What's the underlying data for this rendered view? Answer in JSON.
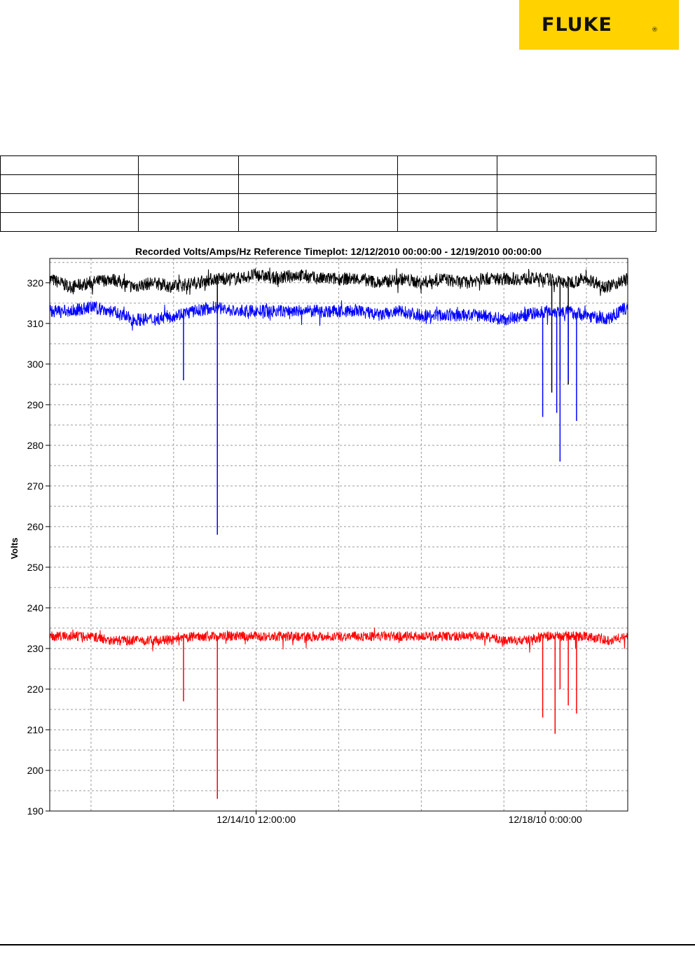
{
  "logo": {
    "text": "FLUKE",
    "registered": "®",
    "color": "#ffd200"
  },
  "table": {
    "rows": [
      [
        "",
        "",
        "",
        "",
        ""
      ],
      [
        "",
        "",
        "",
        "",
        ""
      ],
      [
        "",
        "",
        "",
        "",
        ""
      ],
      [
        "",
        "",
        "",
        "",
        ""
      ]
    ]
  },
  "chart_data": {
    "type": "line",
    "title": "Recorded Volts/Amps/Hz Reference Timeplot: 12/12/2010 00:00:00 - 12/19/2010 00:00:00",
    "xlabel": "",
    "ylabel": "Volts",
    "x_range": [
      "12/12/10 0:00:00",
      "12/19/10 0:00:00"
    ],
    "x_tick_labels": [
      "12/14/10 12:00:00",
      "12/18/10 0:00:00"
    ],
    "ylim": [
      190,
      326
    ],
    "y_ticks": [
      190,
      200,
      210,
      220,
      230,
      240,
      250,
      260,
      270,
      280,
      290,
      300,
      310,
      320
    ],
    "grid": true,
    "legend": "none",
    "series": [
      {
        "color": "#000000",
        "day_offsets": [
          0,
          0.25,
          0.5,
          0.75,
          1,
          1.25,
          1.5,
          1.75,
          2,
          2.25,
          2.5,
          2.75,
          3,
          3.25,
          3.5,
          3.75,
          4,
          4.25,
          4.5,
          4.75,
          5,
          5.25,
          5.5,
          5.75,
          6,
          6.25,
          6.5,
          6.75,
          7
        ],
        "values": [
          321,
          319,
          320,
          321,
          319,
          320,
          319,
          320,
          321,
          321,
          322,
          321,
          322,
          321,
          321,
          321,
          320,
          321,
          320,
          321,
          320,
          321,
          321,
          321,
          321,
          320,
          321,
          319,
          321
        ],
        "noise": 1.6,
        "dips": [
          {
            "x": 2.03,
            "y": 284
          },
          {
            "x": 6.08,
            "y": 293
          },
          {
            "x": 6.18,
            "y": 296
          },
          {
            "x": 6.28,
            "y": 295
          }
        ]
      },
      {
        "color": "#0000ff",
        "day_offsets": [
          0,
          0.25,
          0.5,
          0.75,
          1,
          1.25,
          1.5,
          1.75,
          2,
          2.25,
          2.5,
          2.75,
          3,
          3.25,
          3.5,
          3.75,
          4,
          4.25,
          4.5,
          4.75,
          5,
          5.25,
          5.5,
          5.75,
          6,
          6.25,
          6.5,
          6.75,
          7
        ],
        "values": [
          313,
          313,
          314,
          313,
          311,
          311,
          312,
          313,
          314,
          313,
          313,
          313,
          313,
          313,
          313,
          313,
          312,
          313,
          312,
          312,
          312,
          312,
          311,
          312,
          313,
          313,
          312,
          311,
          314
        ],
        "noise": 1.6,
        "dips": [
          {
            "x": 1.62,
            "y": 296
          },
          {
            "x": 2.03,
            "y": 258
          },
          {
            "x": 5.97,
            "y": 287
          },
          {
            "x": 6.14,
            "y": 288
          },
          {
            "x": 6.18,
            "y": 276
          },
          {
            "x": 6.28,
            "y": 296
          },
          {
            "x": 6.38,
            "y": 286
          }
        ]
      },
      {
        "color": "#ff0000",
        "day_offsets": [
          0,
          0.25,
          0.5,
          0.75,
          1,
          1.25,
          1.5,
          1.75,
          2,
          2.25,
          2.5,
          2.75,
          3,
          3.25,
          3.5,
          3.75,
          4,
          4.25,
          4.5,
          4.75,
          5,
          5.25,
          5.5,
          5.75,
          6,
          6.25,
          6.5,
          6.75,
          7
        ],
        "values": [
          233,
          233,
          233,
          232,
          232,
          232,
          232,
          233,
          233,
          233,
          233,
          233,
          233,
          233,
          233,
          233,
          233,
          233,
          233,
          233,
          233,
          233,
          232,
          232,
          233,
          233,
          233,
          232,
          233
        ],
        "noise": 1.2,
        "dips": [
          {
            "x": 1.62,
            "y": 217
          },
          {
            "x": 2.03,
            "y": 193
          },
          {
            "x": 5.97,
            "y": 213
          },
          {
            "x": 6.12,
            "y": 209
          },
          {
            "x": 6.18,
            "y": 220
          },
          {
            "x": 6.28,
            "y": 216
          },
          {
            "x": 6.38,
            "y": 214
          }
        ]
      }
    ]
  }
}
